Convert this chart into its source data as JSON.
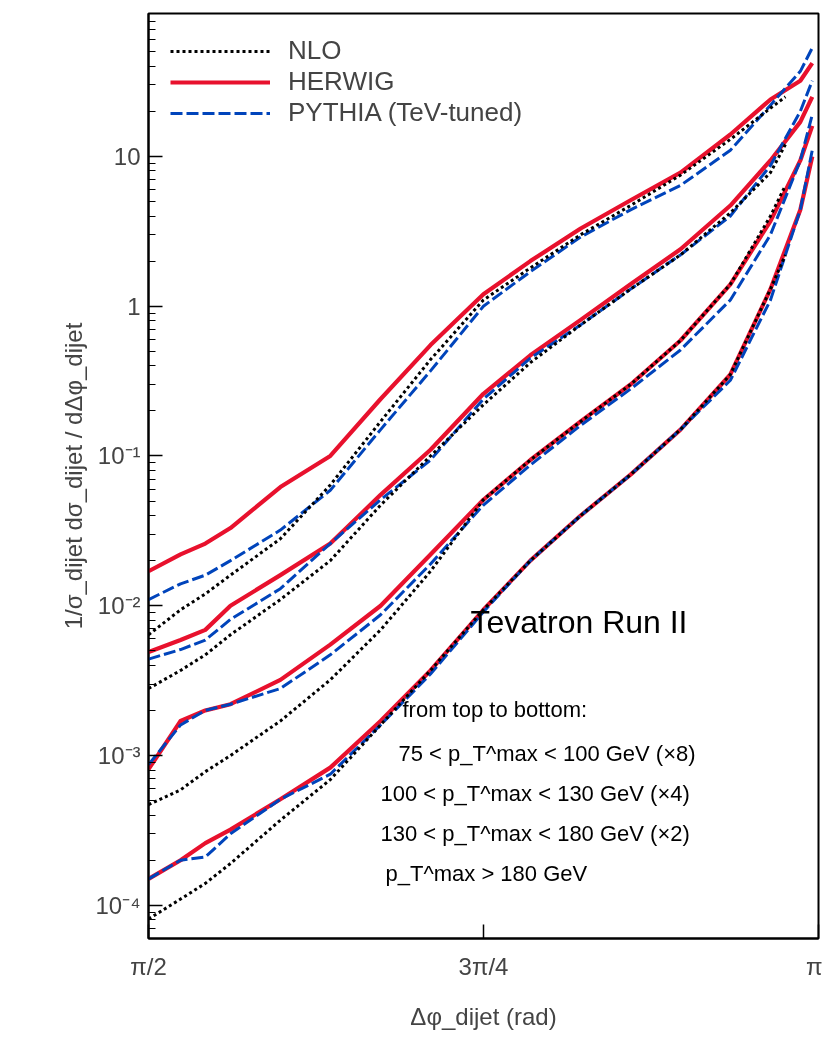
{
  "chart_data": {
    "type": "line",
    "xlabel": "Δφ_dijet (rad)",
    "ylabel": "1/σ_dijet dσ_dijet / dΔφ_dijet",
    "x": [
      1.571,
      1.646,
      1.704,
      1.763,
      1.88,
      1.997,
      2.115,
      2.232,
      2.356,
      2.466,
      2.584,
      2.701,
      2.818,
      2.935,
      3.029,
      3.099,
      3.127
    ],
    "xlim": [
      1.5708,
      3.1416
    ],
    "xticks": [
      {
        "value": 1.5708,
        "label": "π/2"
      },
      {
        "value": 2.3562,
        "label": "3π/4"
      },
      {
        "value": 3.1416,
        "label": "π"
      }
    ],
    "ylim": [
      6e-05,
      90
    ],
    "yticks": [
      {
        "value": 0.0001,
        "label": "10⁻⁴"
      },
      {
        "value": 0.001,
        "label": "10⁻³"
      },
      {
        "value": 0.01,
        "label": "10⁻²"
      },
      {
        "value": 0.1,
        "label": "10⁻¹"
      },
      1,
      10
    ],
    "log": "y",
    "grid": false,
    "legend": "top left",
    "series": [
      {
        "name": "NLO",
        "color": "#000000",
        "line_style": "dotted",
        "x": [
          1.571,
          1.646,
          1.704,
          1.763,
          1.88,
          1.997,
          2.115,
          2.232,
          2.356,
          2.466,
          2.584,
          2.701,
          2.818,
          2.935,
          3.029,
          3.064
        ],
        "values": [
          0.0064,
          0.0094,
          0.012,
          0.016,
          0.028,
          0.064,
          0.17,
          0.44,
          1.1,
          1.8,
          3.0,
          4.7,
          7.5,
          13,
          21,
          25
        ]
      },
      {
        "name": "HERWIG",
        "color": "#e8112d",
        "line_style": "solid",
        "values": [
          0.017,
          0.022,
          0.026,
          0.033,
          0.062,
          0.1,
          0.24,
          0.55,
          1.2,
          2.0,
          3.3,
          5.1,
          7.8,
          14,
          24,
          32,
          42
        ]
      },
      {
        "name": "PYTHIA (TeV-tuned)",
        "color": "#0044bb",
        "line_style": "dashed",
        "values": [
          0.011,
          0.014,
          0.016,
          0.02,
          0.032,
          0.059,
          0.15,
          0.37,
          1.0,
          1.7,
          2.9,
          4.4,
          6.4,
          11,
          22,
          37,
          53
        ]
      },
      {
        "color": "#000000",
        "line_style": "dotted",
        "x": [
          1.571,
          1.646,
          1.704,
          1.763,
          1.88,
          1.997,
          2.115,
          2.232,
          2.356,
          2.466,
          2.584,
          2.701,
          2.818,
          2.935,
          3.029,
          3.064
        ],
        "values": [
          0.0028,
          0.0037,
          0.0047,
          0.0064,
          0.011,
          0.02,
          0.047,
          0.1,
          0.22,
          0.42,
          0.75,
          1.3,
          2.2,
          4.2,
          7.8,
          12
        ]
      },
      {
        "color": "#e8112d",
        "line_style": "solid",
        "values": [
          0.0049,
          0.0059,
          0.0069,
          0.01,
          0.016,
          0.026,
          0.055,
          0.11,
          0.26,
          0.47,
          0.81,
          1.4,
          2.4,
          4.7,
          9.4,
          17,
          25
        ]
      },
      {
        "color": "#0044bb",
        "line_style": "dashed",
        "values": [
          0.0044,
          0.0051,
          0.0059,
          0.0081,
          0.013,
          0.026,
          0.051,
          0.094,
          0.24,
          0.45,
          0.75,
          1.3,
          2.2,
          4.0,
          8.7,
          20,
          32
        ]
      },
      {
        "color": "#000000",
        "line_style": "dotted",
        "x": [
          1.571,
          1.646,
          1.704,
          1.763,
          1.88,
          1.997,
          2.115,
          2.232,
          2.356,
          2.466,
          2.584,
          2.701,
          2.818,
          2.935,
          3.029,
          3.064
        ],
        "values": [
          0.00047,
          0.00059,
          0.00078,
          0.001,
          0.0017,
          0.0032,
          0.0069,
          0.017,
          0.051,
          0.094,
          0.17,
          0.3,
          0.59,
          1.4,
          4.0,
          6.4
        ]
      },
      {
        "color": "#e8112d",
        "line_style": "solid",
        "values": [
          0.00081,
          0.0017,
          0.002,
          0.0022,
          0.0032,
          0.0055,
          0.01,
          0.022,
          0.051,
          0.094,
          0.17,
          0.3,
          0.59,
          1.4,
          3.7,
          9.4,
          16
        ]
      },
      {
        "color": "#0044bb",
        "line_style": "dashed",
        "values": [
          0.00087,
          0.0016,
          0.002,
          0.0022,
          0.0028,
          0.0047,
          0.0087,
          0.019,
          0.047,
          0.087,
          0.16,
          0.28,
          0.51,
          1.1,
          3.0,
          9.4,
          19
        ]
      },
      {
        "color": "#000000",
        "line_style": "dotted",
        "x": [
          1.571,
          1.646,
          1.704,
          1.763,
          1.88,
          1.997,
          2.115,
          2.232,
          2.356,
          2.466,
          2.584,
          2.701,
          2.818,
          2.935,
          3.029,
          3.064
        ],
        "values": [
          8.1e-05,
          0.00011,
          0.00014,
          0.00019,
          0.00037,
          0.00069,
          0.0016,
          0.0037,
          0.0094,
          0.02,
          0.04,
          0.075,
          0.15,
          0.35,
          1.3,
          2.2
        ]
      },
      {
        "color": "#e8112d",
        "line_style": "solid",
        "values": [
          0.00015,
          0.0002,
          0.00026,
          0.00032,
          0.00051,
          0.00083,
          0.0017,
          0.0037,
          0.0094,
          0.02,
          0.04,
          0.075,
          0.15,
          0.35,
          1.3,
          4.4,
          10
        ]
      },
      {
        "color": "#0044bb",
        "line_style": "dashed",
        "values": [
          0.00015,
          0.0002,
          0.00021,
          0.0003,
          0.00051,
          0.00075,
          0.0016,
          0.0035,
          0.0091,
          0.02,
          0.04,
          0.075,
          0.15,
          0.32,
          1.1,
          4.4,
          11
        ]
      }
    ],
    "annotations": [
      "Tevatron Run II",
      "from top to bottom:",
      "75 < p_T^max < 100 GeV  (×8)",
      "100 < p_T^max < 130 GeV  (×4)",
      "130 < p_T^max < 180 GeV  (×2)",
      "p_T^max > 180 GeV"
    ]
  }
}
